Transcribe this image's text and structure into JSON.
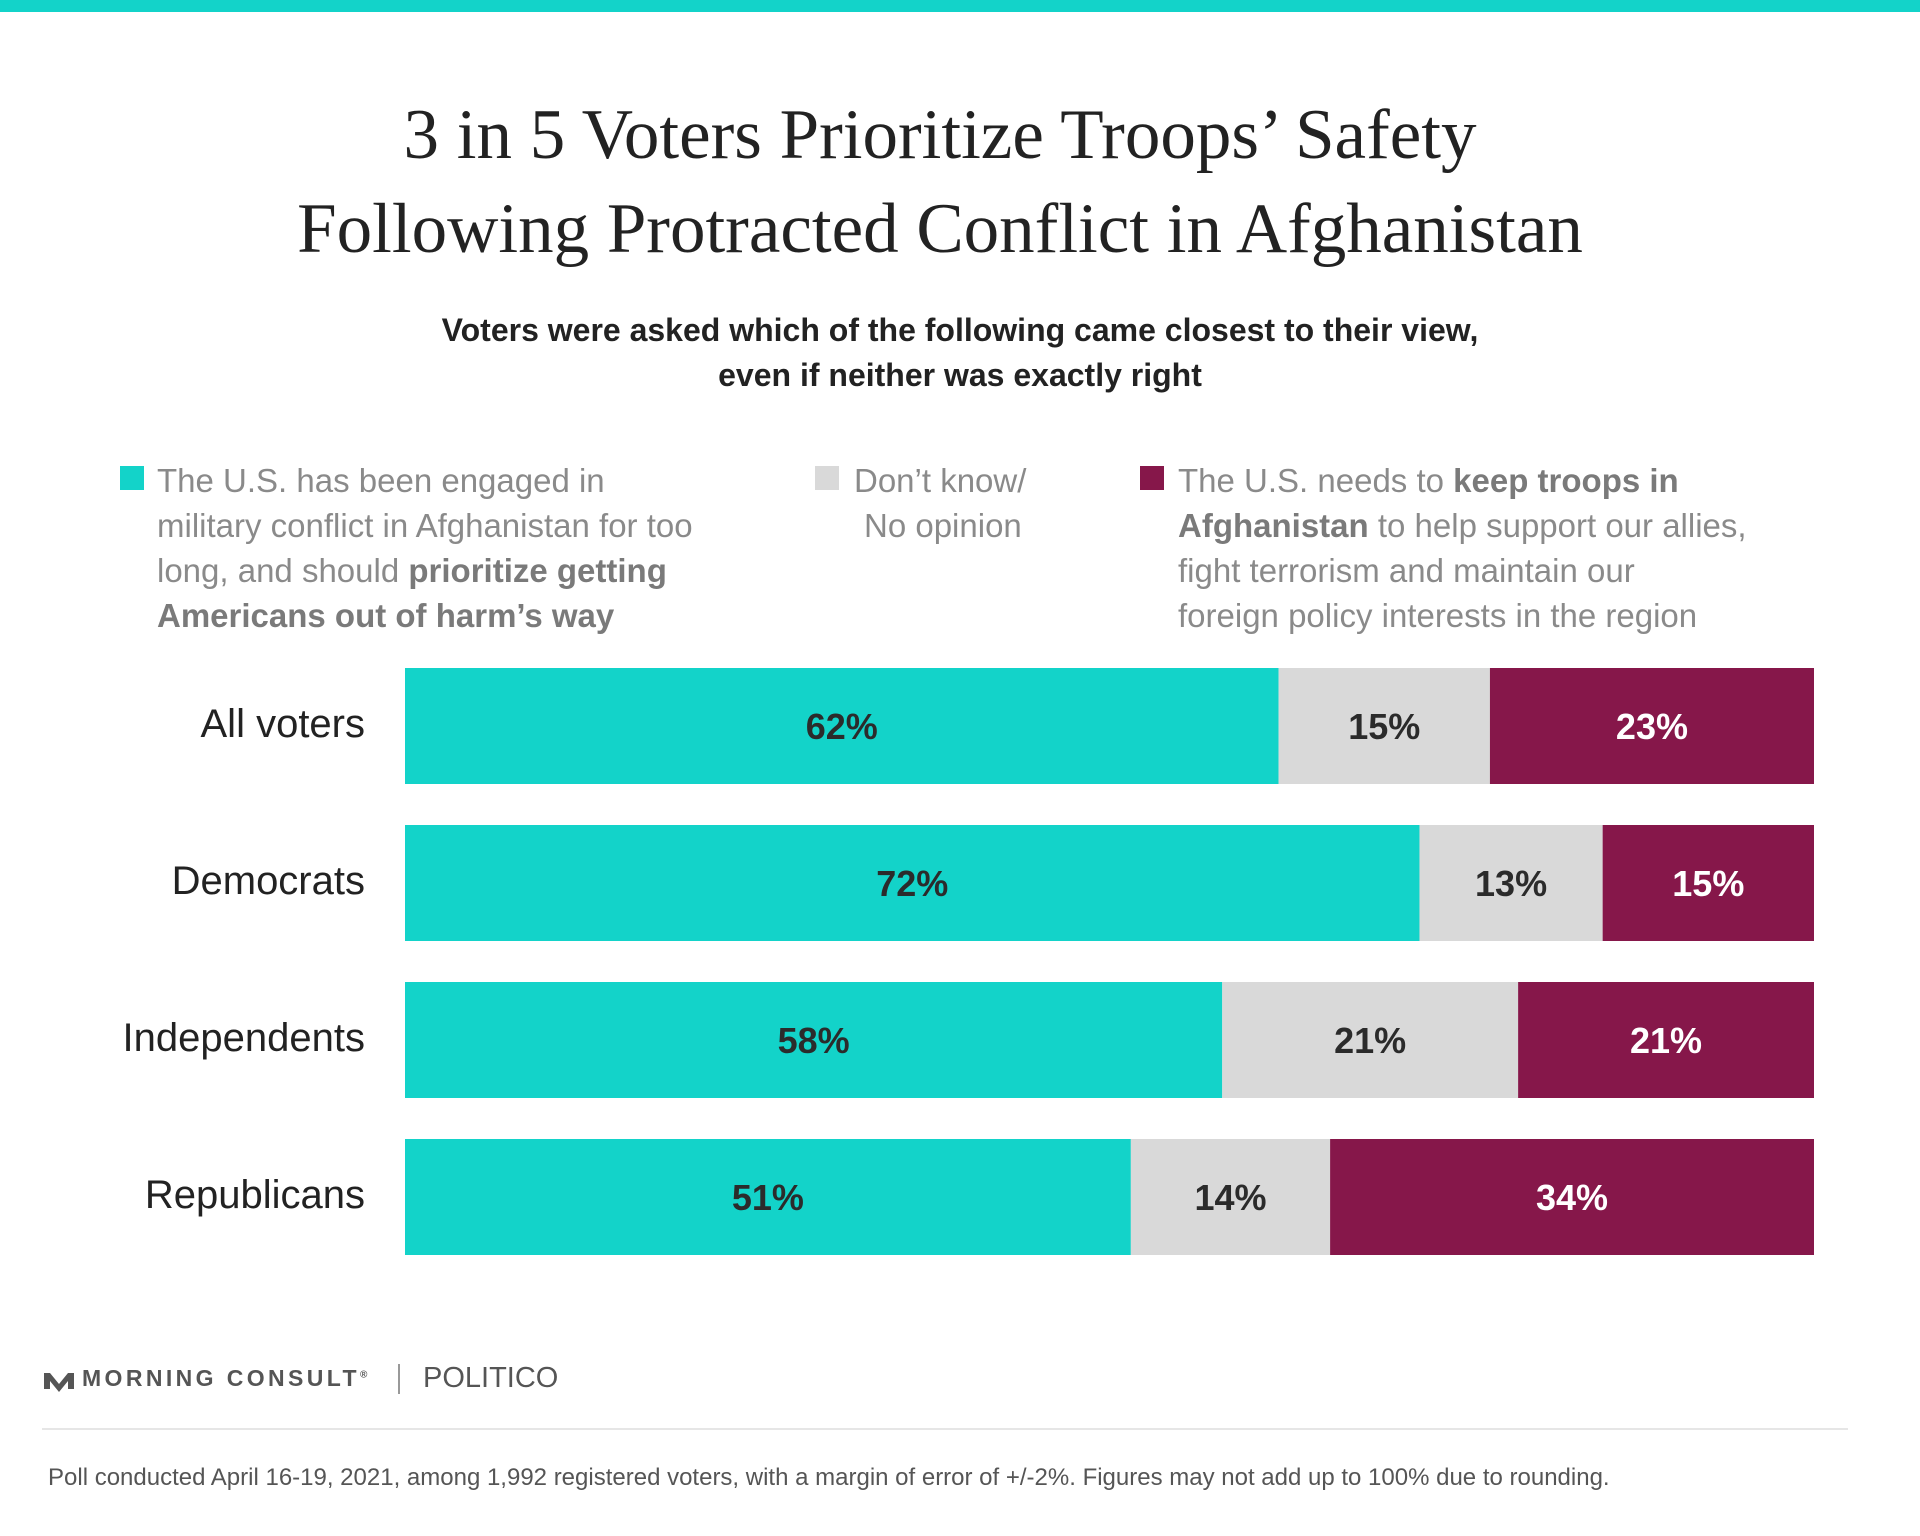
{
  "title_line1": "3 in 5 Voters Prioritize Troops’ Safety",
  "title_line2": "Following Protracted Conflict in Afghanistan",
  "subtitle_line1": "Voters were asked which of the following came closest to their view,",
  "subtitle_line2": "even if neither was exactly right",
  "legend": {
    "leave": {
      "line1": "The U.S. has been engaged in",
      "line2": "military conflict in Afghanistan for too",
      "line3_plain": "long, and should ",
      "line3_bold": "prioritize getting",
      "line4_bold": "Americans out of harm’s way"
    },
    "dk": {
      "line1": "Don’t know/",
      "line2": "No opinion"
    },
    "keep": {
      "line1_plain": "The U.S. needs to ",
      "line1_bold": "keep troops in",
      "line2_bold": "Afghanistan",
      "line2_plain": " to help support our allies,",
      "line3": "fight terrorism and maintain our",
      "line4": "foreign policy interests in the region"
    }
  },
  "colors": {
    "leave": "#13d3c9",
    "dk": "#d9d9d9",
    "keep": "#86174a",
    "accent": "#13d3c9"
  },
  "chart_data": {
    "type": "bar",
    "orientation": "horizontal-stacked",
    "categories": [
      "All voters",
      "Democrats",
      "Independents",
      "Republicans"
    ],
    "series": [
      {
        "key": "leave",
        "values": [
          62,
          72,
          58,
          51
        ]
      },
      {
        "key": "dk",
        "values": [
          15,
          13,
          21,
          14
        ]
      },
      {
        "key": "keep",
        "values": [
          23,
          15,
          21,
          34
        ]
      }
    ],
    "value_labels": [
      [
        "62%",
        "15%",
        "23%"
      ],
      [
        "72%",
        "13%",
        "15%"
      ],
      [
        "58%",
        "21%",
        "21%"
      ],
      [
        "51%",
        "14%",
        "34%"
      ]
    ],
    "xlim": [
      0,
      100
    ]
  },
  "footer": {
    "brand": "MORNING CONSULT",
    "brand_mark": "®",
    "partner": "POLITICO",
    "note": "Poll conducted April 16-19, 2021, among 1,992 registered voters, with a margin of error of +/-2%. Figures may not add up to 100% due to rounding."
  }
}
